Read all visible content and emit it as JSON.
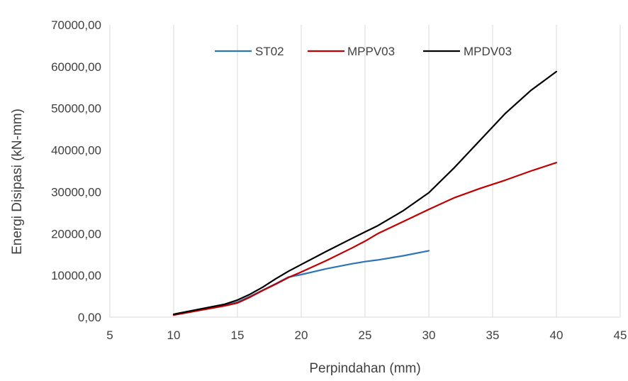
{
  "chart_data": {
    "type": "line",
    "title": "",
    "xlabel": "Perpindahan (mm)",
    "ylabel": "Energi Disipasi (kN-mm)",
    "xlim": [
      5,
      45
    ],
    "ylim": [
      0,
      70000
    ],
    "xticks": [
      "5",
      "10",
      "15",
      "20",
      "25",
      "30",
      "35",
      "40",
      "45"
    ],
    "yticks": [
      "0,00",
      "10000,00",
      "20000,00",
      "30000,00",
      "40000,00",
      "50000,00",
      "60000,00",
      "70000,00"
    ],
    "grid": "vertical",
    "legend_position": "top",
    "series": [
      {
        "name": "ST02",
        "color": "#2E75B6",
        "x": [
          10,
          12,
          14,
          15,
          16,
          17,
          18,
          19,
          20,
          22,
          24,
          25,
          26,
          28,
          30
        ],
        "y": [
          600,
          1700,
          2800,
          3600,
          5000,
          6500,
          8000,
          9600,
          10200,
          11600,
          12800,
          13300,
          13700,
          14700,
          15900
        ]
      },
      {
        "name": "MPPV03",
        "color": "#C00000",
        "x": [
          10,
          12,
          14,
          15,
          16,
          17,
          18,
          19,
          20,
          22,
          24,
          25,
          26,
          28,
          30,
          32,
          34,
          36,
          38,
          40
        ],
        "y": [
          500,
          1600,
          2700,
          3400,
          4800,
          6400,
          7900,
          9500,
          10800,
          13600,
          16600,
          18200,
          20000,
          22900,
          25800,
          28600,
          30800,
          32800,
          35000,
          37000
        ]
      },
      {
        "name": "MPDV03",
        "color": "#000000",
        "x": [
          10,
          12,
          14,
          15,
          16,
          17,
          18,
          19,
          20,
          22,
          24,
          25,
          26,
          28,
          30,
          32,
          34,
          36,
          38,
          40
        ],
        "y": [
          700,
          1900,
          3100,
          4100,
          5500,
          7200,
          9200,
          11000,
          12600,
          15800,
          18900,
          20400,
          21900,
          25500,
          29800,
          35800,
          42300,
          48800,
          54300,
          58800
        ]
      }
    ]
  }
}
